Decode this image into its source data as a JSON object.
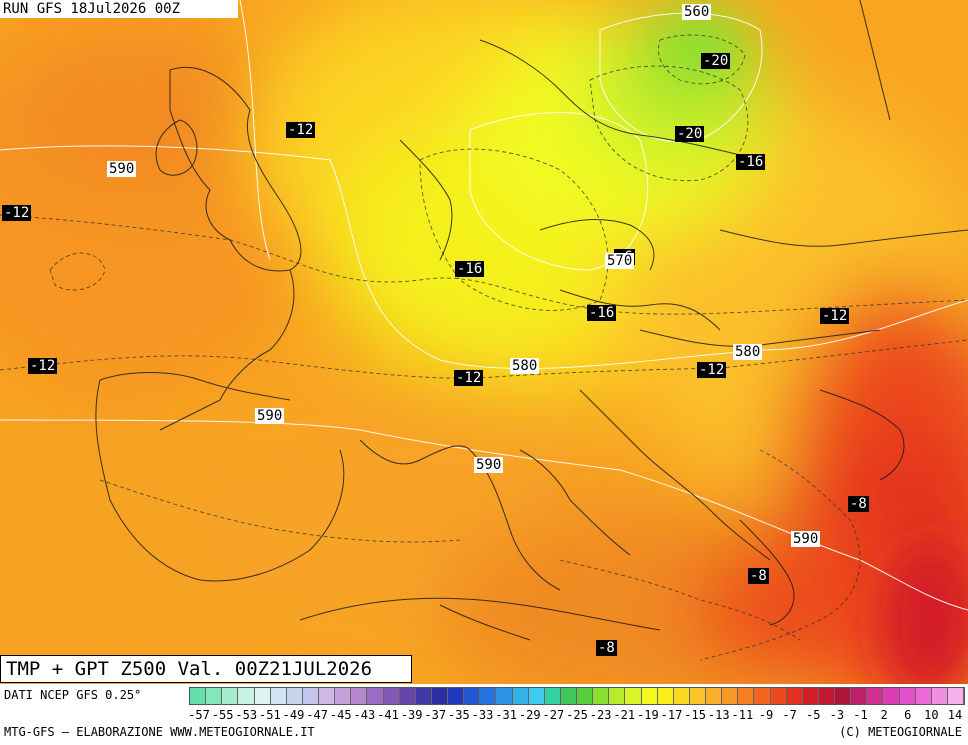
{
  "header": {
    "run_title": "RUN GFS 18Jul2026 00Z"
  },
  "footer": {
    "valid_title": "TMP + GPT Z500 Val. 00Z21JUL2026",
    "source": "DATI NCEP GFS 0.25°",
    "credit_left": "MTG-GFS – ELABORAZIONE WWW.METEOGIORNALE.IT",
    "credit_right": "(C) METEOGIORNALE"
  },
  "map": {
    "temperature_labels": [
      {
        "text": "-12"
      },
      {
        "text": "-12"
      },
      {
        "text": "-12"
      },
      {
        "text": "-20"
      },
      {
        "text": "-20"
      },
      {
        "text": "-16"
      },
      {
        "text": "-16"
      },
      {
        "text": "-6"
      },
      {
        "text": "-16"
      },
      {
        "text": "-12"
      },
      {
        "text": "-12"
      },
      {
        "text": "-12"
      },
      {
        "text": "-8"
      },
      {
        "text": "-8"
      },
      {
        "text": "-8"
      }
    ],
    "geopotential_labels": [
      {
        "text": "560"
      },
      {
        "text": "590"
      },
      {
        "text": "570"
      },
      {
        "text": "580"
      },
      {
        "text": "580"
      },
      {
        "text": "590"
      },
      {
        "text": "590"
      },
      {
        "text": "590"
      }
    ]
  },
  "legend": {
    "tick_labels": [
      "-57",
      "-55",
      "-53",
      "-51",
      "-49",
      "-47",
      "-45",
      "-43",
      "-41",
      "-39",
      "-37",
      "-35",
      "-33",
      "-31",
      "-29",
      "-27",
      "-25",
      "-23",
      "-21",
      "-19",
      "-17",
      "-15",
      "-13",
      "-11",
      "-9",
      "-7",
      "-5",
      "-3",
      "-1",
      "2",
      "6",
      "10",
      "14"
    ],
    "colors": [
      "#63e0a8",
      "#85e6bb",
      "#a6eccf",
      "#c5f2e1",
      "#dcf3f2",
      "#cfe6f2",
      "#c6d6ef",
      "#c2c6eb",
      "#cdb8e6",
      "#c79fdb",
      "#b687cf",
      "#9c6cc2",
      "#8458b5",
      "#6646ab",
      "#3f3aa3",
      "#2a2fa6",
      "#2038bd",
      "#2356d1",
      "#2374dc",
      "#2b92e4",
      "#35b1ea",
      "#3dcbf0",
      "#33d1a0",
      "#3ec85c",
      "#56d13b",
      "#8be02f",
      "#b6ec2a",
      "#d9f526",
      "#f2fa20",
      "#fdef1c",
      "#fcd922",
      "#fbc42a",
      "#f9ae2c",
      "#f8982a",
      "#f67f24",
      "#f2641f",
      "#ec4a1e",
      "#e3311f",
      "#d41f27",
      "#c31833",
      "#b0153e",
      "#c01f6b",
      "#d12e92",
      "#dc3db0",
      "#e24fc9",
      "#eb6ad8",
      "#f08ee1",
      "#f6b2ea"
    ]
  }
}
